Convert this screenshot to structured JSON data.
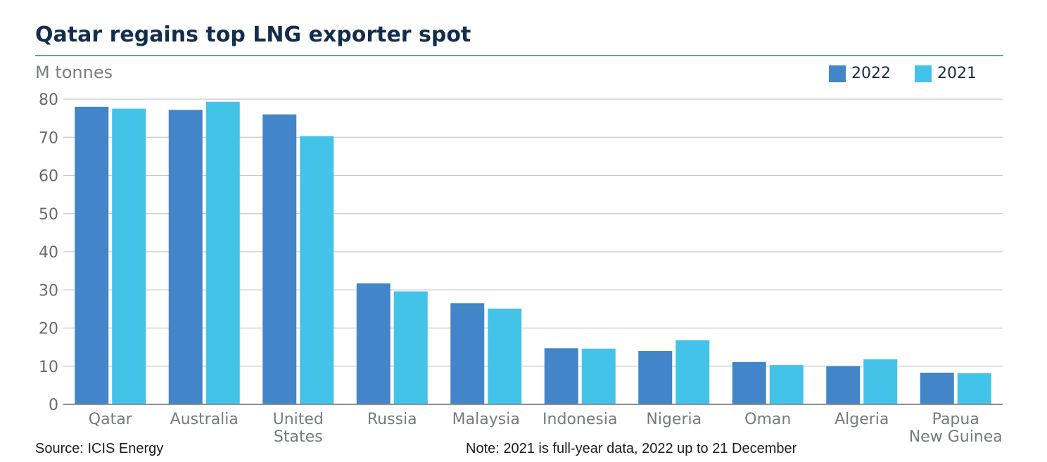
{
  "title": "Qatar regains top LNG exporter spot",
  "source": "Source: ICIS Energy",
  "note": "Note: 2021 is full-year data, 2022 up to 21 December",
  "colors": {
    "series_2022": "#4285c8",
    "series_2021": "#44c3e9",
    "title": "#142d4c",
    "title_rule": "#5aa88e",
    "grid": "#c8c8c8",
    "axis": "#8f8f8f"
  },
  "chart_data": {
    "type": "bar",
    "title": "Qatar regains top LNG exporter spot",
    "ylabel": "M tonnes",
    "xlabel": "",
    "ylim": [
      0,
      80
    ],
    "yticks": [
      0,
      10,
      20,
      30,
      40,
      50,
      60,
      70,
      80
    ],
    "grid": true,
    "legend_position": "top-right",
    "categories": [
      [
        "Qatar"
      ],
      [
        "Australia"
      ],
      [
        "United",
        "States"
      ],
      [
        "Russia"
      ],
      [
        "Malaysia"
      ],
      [
        "Indonesia"
      ],
      [
        "Nigeria"
      ],
      [
        "Oman"
      ],
      [
        "Algeria"
      ],
      [
        "Papua",
        "New Guinea"
      ]
    ],
    "series": [
      {
        "name": "2022",
        "values": [
          78.0,
          77.2,
          76.0,
          31.7,
          26.5,
          14.7,
          14.0,
          11.1,
          10.0,
          8.3
        ]
      },
      {
        "name": "2021",
        "values": [
          77.5,
          79.3,
          70.3,
          29.6,
          25.1,
          14.6,
          16.8,
          10.3,
          11.8,
          8.2
        ]
      }
    ]
  }
}
